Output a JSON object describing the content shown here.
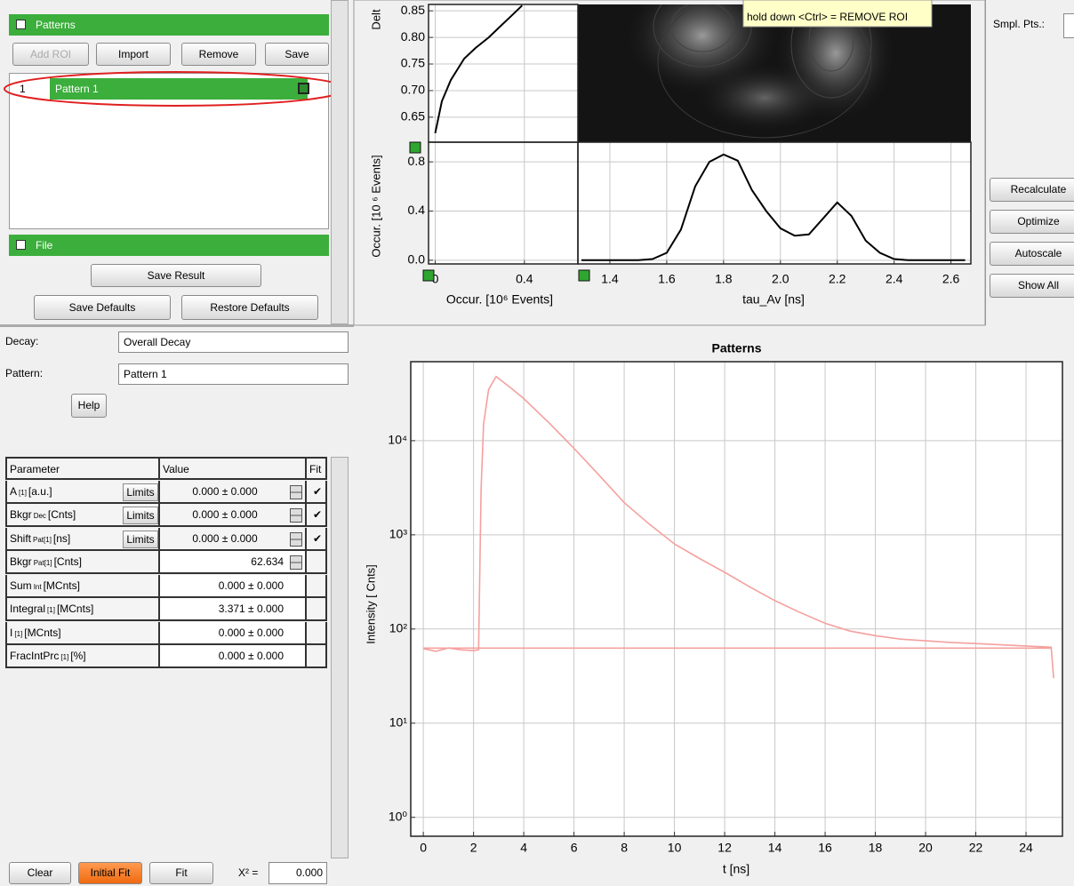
{
  "patterns": {
    "title": "Patterns",
    "buttons": [
      "Add ROI",
      "Import",
      "Remove",
      "Save"
    ],
    "rows": [
      {
        "index": "1",
        "name": "Pattern 1"
      }
    ]
  },
  "file": {
    "title": "File",
    "save_result": "Save Result",
    "save_defaults": "Save Defaults",
    "restore_defaults": "Restore Defaults"
  },
  "decay": {
    "label": "Decay:",
    "value": "Overall Decay"
  },
  "pattern": {
    "label": "Pattern:",
    "value": "Pattern 1"
  },
  "help": "Help",
  "table": {
    "headers": [
      "Parameter",
      "Value",
      "Fit"
    ],
    "rows": [
      {
        "name": "A",
        "sub": "[1]",
        "unit": "[a.u.]",
        "limits": "Limits",
        "value": "0.000 ± 0.000",
        "fit": "✔"
      },
      {
        "name": "Bkgr",
        "sub": "Dec",
        "unit": "[Cnts]",
        "limits": "Limits",
        "value": "0.000 ± 0.000",
        "fit": "✔"
      },
      {
        "name": "Shift",
        "sub": "Pat[1]",
        "unit": "[ns]",
        "limits": "Limits",
        "value": "0.000 ± 0.000",
        "fit": "✔"
      },
      {
        "name": "Bkgr",
        "sub": "Pat[1]",
        "unit": "[Cnts]",
        "value": "62.634"
      },
      {
        "name": "Sum",
        "sub": "Int",
        "unit": "[MCnts]",
        "value": "0.000 ± 0.000"
      },
      {
        "name": "Integral",
        "sub": "[1]",
        "unit": "[MCnts]",
        "value": "3.371 ± 0.000"
      },
      {
        "name": "I",
        "sub": "[1]",
        "unit": "[MCnts]",
        "value": "0.000 ± 0.000"
      },
      {
        "name": "FracIntPrc",
        "sub": "[1]",
        "unit": "[%]",
        "value": "0.000 ± 0.000"
      }
    ]
  },
  "bottom": {
    "clear": "Clear",
    "initial_fit": "Initial Fit",
    "fit": "Fit",
    "chi_label": "X² =",
    "chi_value": "0.000"
  },
  "tooltip": "hold down <Ctrl> = REMOVE ROI",
  "side": {
    "smpl_label": "Smpl. Pts.:",
    "buttons": [
      "Recalculate",
      "Optimize",
      "Autoscale",
      "Show All"
    ]
  },
  "chart_data": [
    {
      "type": "line",
      "orientation": "horizontal",
      "y_label": "Delt",
      "x_label": "Occur. [10⁶ Events]",
      "y": [
        0.62,
        0.64,
        0.66,
        0.68,
        0.7,
        0.72,
        0.74,
        0.76,
        0.78,
        0.8,
        0.82,
        0.84,
        0.86
      ],
      "series": [
        {
          "color": "#000000",
          "values": [
            0.0,
            0.01,
            0.02,
            0.03,
            0.05,
            0.07,
            0.1,
            0.13,
            0.18,
            0.24,
            0.29,
            0.34,
            0.39
          ]
        }
      ],
      "xlim": [
        -0.03,
        0.64
      ],
      "ylim": [
        0.603,
        0.862
      ],
      "xticks": [
        0,
        0.4
      ],
      "yticks": [
        0.65,
        {
          "value": 0.7,
          "label": "0.70"
        },
        0.75,
        {
          "value": 0.8,
          "label": "0.80"
        },
        0.85
      ],
      "grid": true
    },
    {
      "type": "line",
      "x_label": "tau_Av [ns]",
      "y_label": "Occur. [10 ⁶ Events]",
      "x": [
        1.3,
        1.5,
        1.55,
        1.6,
        1.65,
        1.7,
        1.75,
        1.8,
        1.85,
        1.9,
        1.95,
        2.0,
        2.05,
        2.1,
        2.15,
        2.2,
        2.25,
        2.3,
        2.35,
        2.4,
        2.45,
        2.65
      ],
      "series": [
        {
          "color": "#000000",
          "values": [
            0,
            0,
            0.01,
            0.06,
            0.25,
            0.6,
            0.8,
            0.86,
            0.81,
            0.57,
            0.4,
            0.26,
            0.2,
            0.21,
            0.34,
            0.47,
            0.36,
            0.16,
            0.06,
            0.01,
            0,
            0
          ]
        }
      ],
      "xlim": [
        1.2875,
        2.67
      ],
      "ylim": [
        -0.03,
        0.96
      ],
      "xticks": [
        1.4,
        1.6,
        1.8,
        {
          "value": 2,
          "label": "2.0"
        },
        2.2,
        2.4,
        2.6
      ],
      "yticks": [
        {
          "value": 0,
          "label": "0.0"
        },
        0.4,
        0.8
      ],
      "grid": true
    },
    {
      "type": "line",
      "title": "Patterns",
      "x_label": "t [ns]",
      "y_label": "Intensity [ Cnts]",
      "log_y": true,
      "x": [
        0,
        0.5,
        1,
        1.5,
        2,
        2.2,
        2.3,
        2.4,
        2.6,
        2.9,
        3.5,
        4,
        5,
        6,
        7,
        8,
        9,
        10,
        11,
        12,
        13,
        14,
        15,
        16,
        17,
        18,
        19,
        20,
        21,
        22,
        23,
        24,
        25,
        25.1
      ],
      "series": [
        {
          "color": "#f4a19e",
          "values": [
            62,
            58,
            63,
            60,
            59,
            60,
            3000,
            15000,
            35000,
            48000,
            36000,
            28000,
            15500,
            8300,
            4300,
            2200,
            1300,
            800,
            560,
            400,
            280,
            200,
            150,
            115,
            95,
            85,
            78,
            75,
            72,
            70,
            68,
            66,
            64,
            30
          ]
        },
        {
          "color": "#f4a19e",
          "x": [
            0,
            25
          ],
          "values": [
            62.634,
            62.634
          ]
        }
      ],
      "xlim": [
        -0.5,
        25.45
      ],
      "ylim": [
        0.63,
        69000
      ],
      "xticks": [
        0,
        2,
        4,
        6,
        8,
        10,
        12,
        14,
        16,
        18,
        20,
        22,
        24
      ],
      "yticks": [
        {
          "value": 1,
          "label": "10⁰"
        },
        {
          "value": 10,
          "label": "10¹"
        },
        {
          "value": 100,
          "label": "10²"
        },
        {
          "value": 1000,
          "label": "10³"
        },
        {
          "value": 10000,
          "label": "10⁴"
        }
      ],
      "grid": true
    }
  ]
}
